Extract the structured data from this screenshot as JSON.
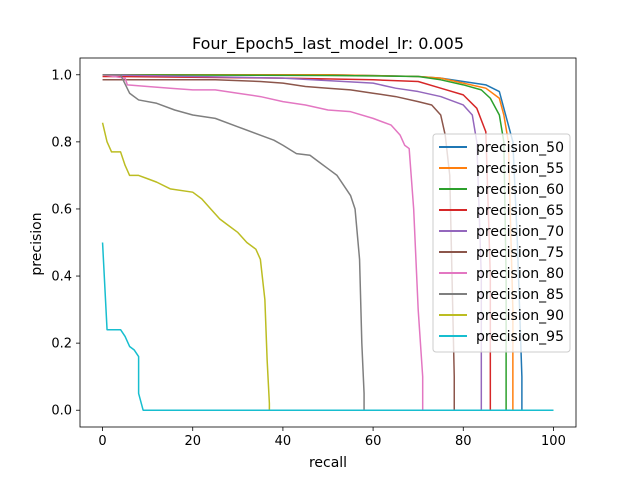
{
  "chart_data": {
    "type": "line",
    "title": "Four_Epoch5_last_model_lr: 0.005",
    "xlabel": "recall",
    "ylabel": "precision",
    "xlim": [
      -5,
      105
    ],
    "ylim": [
      -0.05,
      1.05
    ],
    "xticks": [
      0,
      20,
      40,
      60,
      80,
      100
    ],
    "yticks": [
      0.0,
      0.2,
      0.4,
      0.6,
      0.8,
      1.0
    ],
    "xtick_labels": [
      "0",
      "20",
      "40",
      "60",
      "80",
      "100"
    ],
    "ytick_labels": [
      "0.0",
      "0.2",
      "0.4",
      "0.6",
      "0.8",
      "1.0"
    ],
    "grid": false,
    "legend_position": "center-right",
    "series": [
      {
        "name": "precision_50",
        "color": "#1f77b4",
        "x": [
          0,
          50,
          70,
          75,
          80,
          85,
          88,
          89,
          90,
          91,
          92,
          93,
          93,
          100
        ],
        "y": [
          1.0,
          1.0,
          0.995,
          0.99,
          0.98,
          0.97,
          0.95,
          0.9,
          0.85,
          0.8,
          0.5,
          0.1,
          0.0,
          0.0
        ]
      },
      {
        "name": "precision_55",
        "color": "#ff7f0e",
        "x": [
          0,
          50,
          70,
          75,
          80,
          85,
          88,
          89,
          90,
          91,
          91,
          100
        ],
        "y": [
          1.0,
          1.0,
          0.995,
          0.99,
          0.975,
          0.96,
          0.93,
          0.88,
          0.8,
          0.3,
          0.0,
          0.0
        ]
      },
      {
        "name": "precision_60",
        "color": "#2ca02c",
        "x": [
          0,
          50,
          70,
          75,
          80,
          84,
          86,
          88,
          89,
          89.5,
          89.5,
          100
        ],
        "y": [
          1.0,
          0.998,
          0.995,
          0.985,
          0.97,
          0.955,
          0.93,
          0.88,
          0.8,
          0.4,
          0.0,
          0.0
        ]
      },
      {
        "name": "precision_65",
        "color": "#d62728",
        "x": [
          0,
          40,
          60,
          70,
          75,
          80,
          83,
          85,
          86,
          86,
          100
        ],
        "y": [
          0.995,
          0.99,
          0.985,
          0.98,
          0.96,
          0.94,
          0.9,
          0.83,
          0.4,
          0.0,
          0.0
        ]
      },
      {
        "name": "precision_70",
        "color": "#9467bd",
        "x": [
          0,
          40,
          60,
          65,
          70,
          75,
          80,
          82,
          83,
          84,
          84,
          100
        ],
        "y": [
          1.0,
          0.99,
          0.975,
          0.96,
          0.95,
          0.935,
          0.91,
          0.88,
          0.8,
          0.4,
          0.0,
          0.0
        ]
      },
      {
        "name": "precision_75",
        "color": "#8c564b",
        "x": [
          0,
          25,
          35,
          40,
          45,
          50,
          55,
          60,
          65,
          70,
          73,
          75,
          76,
          77,
          77.5,
          78,
          78,
          100
        ],
        "y": [
          0.985,
          0.985,
          0.98,
          0.975,
          0.965,
          0.96,
          0.955,
          0.945,
          0.935,
          0.92,
          0.91,
          0.88,
          0.82,
          0.7,
          0.4,
          0.1,
          0.0,
          0.0
        ]
      },
      {
        "name": "precision_80",
        "color": "#e377c2",
        "x": [
          0,
          5,
          5.5,
          10,
          15,
          20,
          25,
          30,
          35,
          40,
          45,
          50,
          55,
          60,
          62,
          64,
          66,
          67,
          68,
          69,
          70,
          71,
          71,
          100
        ],
        "y": [
          1.0,
          0.99,
          0.97,
          0.965,
          0.96,
          0.955,
          0.955,
          0.945,
          0.935,
          0.92,
          0.91,
          0.895,
          0.89,
          0.87,
          0.86,
          0.85,
          0.82,
          0.79,
          0.78,
          0.6,
          0.3,
          0.1,
          0.0,
          0.0
        ]
      },
      {
        "name": "precision_85",
        "color": "#7f7f7f",
        "x": [
          0,
          4,
          6,
          8,
          12,
          16,
          20,
          25,
          30,
          35,
          38,
          40,
          43,
          46,
          48,
          50,
          52,
          54,
          55,
          56,
          57,
          57.5,
          58,
          58,
          100
        ],
        "y": [
          1.0,
          1.0,
          0.945,
          0.925,
          0.915,
          0.895,
          0.88,
          0.87,
          0.845,
          0.82,
          0.805,
          0.79,
          0.765,
          0.76,
          0.74,
          0.72,
          0.7,
          0.66,
          0.64,
          0.6,
          0.45,
          0.2,
          0.05,
          0.0,
          0.0
        ]
      },
      {
        "name": "precision_90",
        "color": "#bcbd22",
        "x": [
          0,
          1,
          2,
          4,
          5,
          6,
          8,
          10,
          12,
          15,
          20,
          22,
          24,
          26,
          28,
          30,
          32,
          34,
          35,
          36,
          36.5,
          37,
          37,
          100
        ],
        "y": [
          0.857,
          0.8,
          0.77,
          0.77,
          0.73,
          0.7,
          0.7,
          0.69,
          0.68,
          0.66,
          0.65,
          0.63,
          0.6,
          0.57,
          0.55,
          0.53,
          0.5,
          0.48,
          0.45,
          0.33,
          0.15,
          0.02,
          0.0,
          0.0
        ]
      },
      {
        "name": "precision_95",
        "color": "#17becf",
        "x": [
          0,
          1,
          2,
          4,
          5,
          6,
          7,
          8,
          8,
          9,
          100
        ],
        "y": [
          0.5,
          0.24,
          0.24,
          0.24,
          0.22,
          0.19,
          0.18,
          0.16,
          0.05,
          0.0,
          0.0
        ]
      }
    ]
  }
}
